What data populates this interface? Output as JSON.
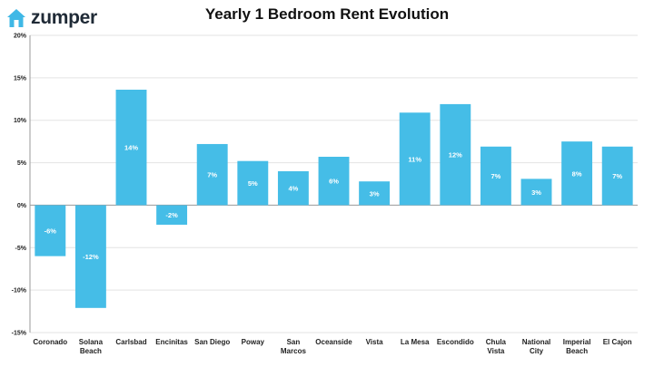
{
  "brand": {
    "name": "zumper",
    "icon": "house-icon",
    "color": "#3fb8e6"
  },
  "chart_data": {
    "type": "bar",
    "title": "Yearly 1 Bedroom Rent Evolution",
    "xlabel": "",
    "ylabel": "",
    "ylim": [
      -15,
      20
    ],
    "yticks": [
      20,
      15,
      10,
      5,
      0,
      -5,
      -10,
      -15
    ],
    "ytick_labels": [
      "20%",
      "15%",
      "10%",
      "5%",
      "0%",
      "-5%",
      "-10%",
      "-15%"
    ],
    "grid": true,
    "bar_color": "#45bde7",
    "categories": [
      [
        "Coronado"
      ],
      [
        "Solana",
        "Beach"
      ],
      [
        "Carlsbad"
      ],
      [
        "Encinitas"
      ],
      [
        "San Diego"
      ],
      [
        "Poway"
      ],
      [
        "San",
        "Marcos"
      ],
      [
        "Oceanside"
      ],
      [
        "Vista"
      ],
      [
        "La Mesa"
      ],
      [
        "Escondido"
      ],
      [
        "Chula",
        "Vista"
      ],
      [
        "National",
        "City"
      ],
      [
        "Imperial",
        "Beach"
      ],
      [
        "El Cajon"
      ]
    ],
    "values": [
      -6,
      -12.1,
      13.6,
      -2.3,
      7.2,
      5.2,
      4.0,
      5.7,
      2.8,
      10.9,
      11.9,
      6.9,
      3.1,
      7.5,
      6.9
    ],
    "data_labels": [
      "-6%",
      "-12%",
      "14%",
      "-2%",
      "7%",
      "5%",
      "4%",
      "6%",
      "3%",
      "11%",
      "12%",
      "7%",
      "3%",
      "8%",
      "7%"
    ]
  }
}
